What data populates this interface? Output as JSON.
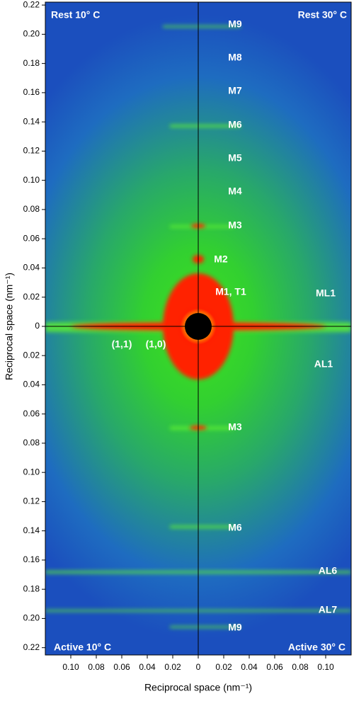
{
  "chart_data": {
    "type": "image",
    "xlabel": "Reciprocal space (nm⁻¹)",
    "ylabel": "Reciprocal space (nm⁻¹)",
    "xlim": [
      -0.12,
      0.12
    ],
    "ylim": [
      -0.225,
      0.222
    ],
    "xticks": [
      {
        "value": -0.1,
        "label": "0.10"
      },
      {
        "value": -0.08,
        "label": "0.08"
      },
      {
        "value": -0.06,
        "label": "0.06"
      },
      {
        "value": -0.04,
        "label": "0.04"
      },
      {
        "value": -0.02,
        "label": "0.02"
      },
      0,
      0.02,
      0.04,
      0.06,
      0.08,
      {
        "value": 0.1,
        "label": "0.10"
      }
    ],
    "yticks": [
      {
        "value": 0.22,
        "label": "0.22"
      },
      {
        "value": 0.2,
        "label": "0.20"
      },
      0.18,
      0.16,
      0.14,
      0.12,
      {
        "value": 0.1,
        "label": "0.10"
      },
      0.08,
      0.06,
      0.04,
      0.02,
      0,
      {
        "value": -0.02,
        "label": "0.02"
      },
      {
        "value": -0.04,
        "label": "0.04"
      },
      {
        "value": -0.06,
        "label": "0.06"
      },
      {
        "value": -0.08,
        "label": "0.08"
      },
      {
        "value": -0.1,
        "label": "0.10"
      },
      {
        "value": -0.12,
        "label": "0.12"
      },
      {
        "value": -0.14,
        "label": "0.14"
      },
      {
        "value": -0.16,
        "label": "0.16"
      },
      {
        "value": -0.18,
        "label": "0.18"
      },
      {
        "value": -0.2,
        "label": "0.20"
      },
      {
        "value": -0.22,
        "label": "0.22"
      }
    ],
    "annotations": [
      "Rest 10° C",
      "Rest 30° C",
      "Active 10° C",
      "Active 30° C",
      "M9",
      "M8",
      "M7",
      "M6",
      "M5",
      "M4",
      "M3",
      "M2",
      "M1, T1",
      "ML1",
      "(1,1)",
      "(1,0)",
      "AL1",
      "M3",
      "M6",
      "AL6",
      "AL7",
      "M9"
    ]
  }
}
